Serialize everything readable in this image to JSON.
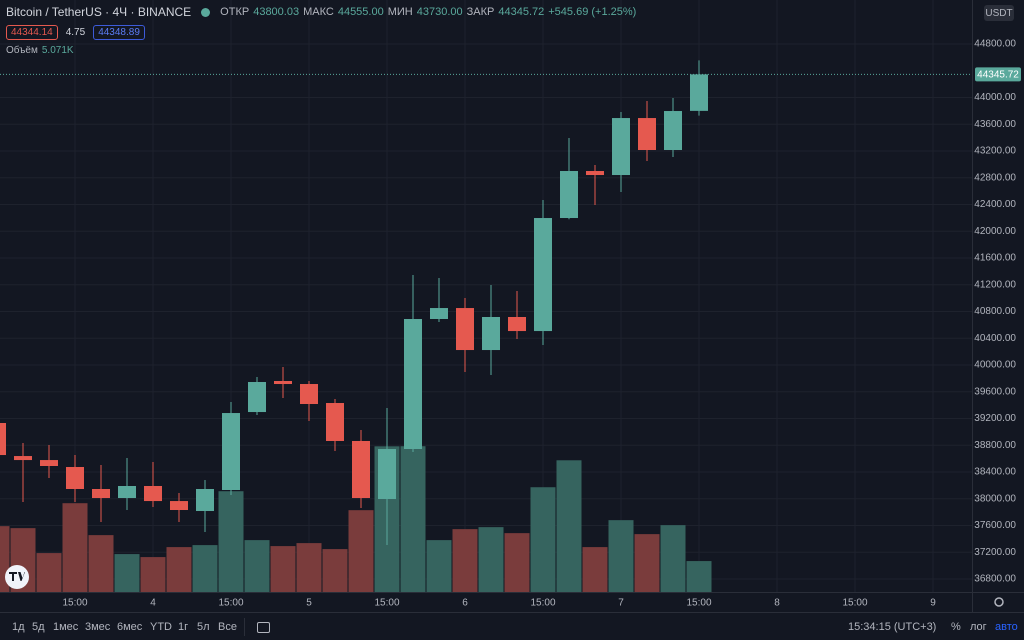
{
  "chart_data": {
    "type": "candlestick",
    "title": "Bitcoin / TetherUS · 4Ч · BINANCE",
    "categories": [
      null,
      null,
      null,
      "15:00",
      null,
      null,
      "4",
      null,
      null,
      "15:00",
      null,
      null,
      "5",
      null,
      null,
      "15:00",
      null,
      null,
      "6",
      null,
      null,
      "15:00",
      null,
      null,
      "7",
      null,
      null,
      "15:00",
      null,
      null,
      "8",
      null,
      null,
      "15:00",
      null,
      null,
      "9"
    ],
    "open": [
      39133,
      38639,
      38579,
      38475,
      38146,
      38011,
      38191,
      37966,
      37817,
      38131,
      39297,
      39761,
      39716,
      39432,
      38864,
      37996,
      38744,
      40688,
      40852,
      40224,
      40718,
      40508,
      42198,
      42901,
      42841,
      43693,
      43215,
      43800.03,
      null,
      null,
      null,
      null,
      null,
      null,
      null,
      null,
      null
    ],
    "high": [
      39180,
      38834,
      38804,
      38654,
      38505,
      38609,
      38549,
      38086,
      38280,
      39447,
      39821,
      39970,
      39761,
      39492,
      39028,
      39357,
      41346,
      41301,
      41002,
      41196,
      41107,
      42467,
      43394,
      42991,
      43783,
      43948,
      43993,
      44555.0,
      null,
      null,
      null,
      null,
      null,
      null,
      null,
      null,
      null
    ],
    "low": [
      38600,
      37952,
      38310,
      37952,
      37653,
      37832,
      37877,
      37653,
      37503,
      38056,
      39252,
      39507,
      39163,
      38714,
      37862,
      37309,
      38699,
      40643,
      39895,
      39851,
      40389,
      40299,
      42180,
      42393,
      42587,
      43050,
      43110,
      43730.0,
      null,
      null,
      null,
      null,
      null,
      null,
      null,
      null,
      null
    ],
    "close": [
      38654,
      38579,
      38490,
      38146,
      38011,
      38191,
      37966,
      37832,
      38146,
      39282,
      39746,
      39716,
      39417,
      38864,
      38011,
      38744,
      40688,
      40852,
      40224,
      40718,
      40508,
      42198,
      42901,
      42841,
      43693,
      43215,
      43798,
      44345.72,
      null,
      null,
      null,
      null,
      null,
      null,
      null,
      null,
      null
    ],
    "volume": [
      10796,
      10469,
      6380,
      14559,
      9324,
      6216,
      5725,
      7361,
      7688,
      16522,
      8506,
      7525,
      8015,
      7034,
      13414,
      23883,
      23900,
      8506,
      10306,
      10633,
      9651,
      17176,
      21593,
      7361,
      11778,
      9488,
      10960,
      5071,
      null,
      null,
      null,
      null,
      null,
      null,
      null,
      null,
      null
    ],
    "up_color": "#5aa99c",
    "down_color": "#e5594f",
    "volume_up_color": "#36645f",
    "volume_down_color": "#7a3c3c",
    "ylim": [
      36606,
      45458
    ],
    "yticks": [
      {
        "value": 36800,
        "label": "36800.00"
      },
      {
        "value": 37200,
        "label": "37200.00"
      },
      {
        "value": 37600,
        "label": "37600.00"
      },
      {
        "value": 38000,
        "label": "38000.00"
      },
      {
        "value": 38400,
        "label": "38400.00"
      },
      {
        "value": 38800,
        "label": "38800.00"
      },
      {
        "value": 39200,
        "label": "39200.00"
      },
      {
        "value": 39600,
        "label": "39600.00"
      },
      {
        "value": 40000,
        "label": "40000.00"
      },
      {
        "value": 40400,
        "label": "40400.00"
      },
      {
        "value": 40800,
        "label": "40800.00"
      },
      {
        "value": 41200,
        "label": "41200.00"
      },
      {
        "value": 41600,
        "label": "41600.00"
      },
      {
        "value": 42000,
        "label": "42000.00"
      },
      {
        "value": 42400,
        "label": "42400.00"
      },
      {
        "value": 42800,
        "label": "42800.00"
      },
      {
        "value": 43200,
        "label": "43200.00"
      },
      {
        "value": 43600,
        "label": "43600.00"
      },
      {
        "value": 44000,
        "label": "44000.00"
      },
      {
        "value": 44800,
        "label": "44800.00"
      }
    ],
    "volume_ylim": [
      0,
      30000
    ],
    "grid": true,
    "currency": "USDT",
    "legend": {
      "ohlc": [
        {
          "label": "ОТКР",
          "value": "43800.03"
        },
        {
          "label": "МАКС",
          "value": "44555.00"
        },
        {
          "label": "МИН",
          "value": "43730.00"
        },
        {
          "label": "ЗАКР",
          "value": "44345.72"
        }
      ],
      "change": "+545.69 (+1.25%)",
      "bid": "44344.14",
      "spread": "4.75",
      "ask": "44348.89",
      "volume_label": "Объём",
      "volume_value": "5.071K"
    }
  },
  "toolbar": {
    "ranges": [
      "1д",
      "5д",
      "1мес",
      "3мес",
      "6мес",
      "YTD",
      "1г",
      "5л",
      "Все"
    ],
    "clock": "15:34:15 (UTC+3)",
    "percent": "%",
    "log": "лог",
    "auto": "авто"
  }
}
